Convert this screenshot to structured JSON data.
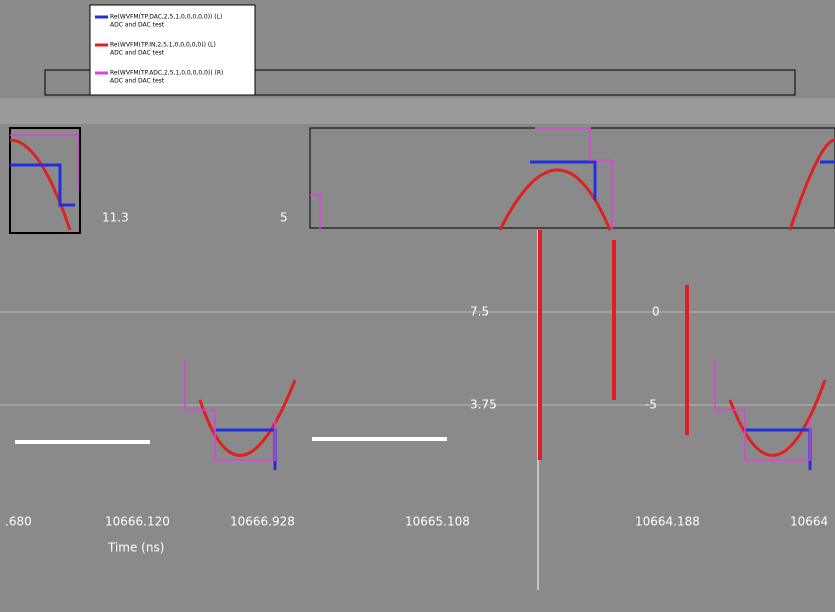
{
  "legend": {
    "entries": [
      {
        "name": "Re(WVFM(TP.DAC,2,5,1,0,0,0,0,0)) (L)",
        "description": "ADC and DAC test"
      },
      {
        "name": "Re(WVFM(TP.IN,2,5,1,0,0,0,0,0)) (L)",
        "description": "ADC and DAC test"
      },
      {
        "name": "Re(WVFM(TP.ADC,2,5,1,0,0,0,0,0)) (R)",
        "description": "ADC and DAC test"
      }
    ]
  },
  "left_axis": {
    "ticks": [
      "11.3",
      "7.5",
      "3.75"
    ]
  },
  "mid_axis": {
    "ticks": [
      "5",
      "0",
      "-5"
    ]
  },
  "x_axis": {
    "ticks": [
      ".680",
      "10666.120",
      "10666.928",
      "10665.108",
      "10664.188",
      "10664"
    ],
    "label": "Time (ns)"
  }
}
